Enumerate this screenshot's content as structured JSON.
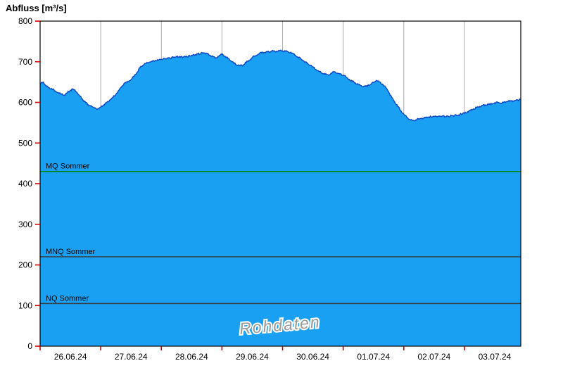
{
  "chart_data": {
    "type": "area",
    "title": "Abfluss [m³/s]",
    "xlabel": "",
    "ylabel": "Abfluss [m³/s]",
    "ylim": [
      0,
      800
    ],
    "y_ticks": [
      0,
      100,
      200,
      300,
      400,
      500,
      600,
      700,
      800
    ],
    "x_range_days": [
      0,
      7.93
    ],
    "day_gridlines": [
      1,
      2,
      3,
      4,
      5,
      6,
      7
    ],
    "x_tick_labels": [
      {
        "pos": 0.5,
        "label": "26.06.24"
      },
      {
        "pos": 1.5,
        "label": "27.06.24"
      },
      {
        "pos": 2.5,
        "label": "28.06.24"
      },
      {
        "pos": 3.5,
        "label": "29.06.24"
      },
      {
        "pos": 4.5,
        "label": "30.06.24"
      },
      {
        "pos": 5.5,
        "label": "01.07.24"
      },
      {
        "pos": 6.5,
        "label": "02.07.24"
      },
      {
        "pos": 7.5,
        "label": "03.07.24"
      }
    ],
    "grid": "vertical-only",
    "legend_position": "none",
    "watermark": {
      "text": "Rohdaten",
      "color": "#9a9a9a"
    },
    "reference_lines": [
      {
        "label": "MQ Sommer",
        "value": 430,
        "color": "#008000"
      },
      {
        "label": "MNQ Sommer",
        "value": 220,
        "color": "#3a3a3a"
      },
      {
        "label": "NQ Sommer",
        "value": 105,
        "color": "#3a3a3a"
      }
    ],
    "colors": {
      "area_fill": "#1aa0f2",
      "area_line": "#0b46c8",
      "tick_mark": "#cc0000",
      "grid_line": "#aaaaaa",
      "axis_text": "#000000",
      "plot_border": "#000000"
    },
    "series": [
      {
        "name": "Abfluss Rohdaten",
        "unit": "m³/s",
        "points": [
          [
            0.0,
            645
          ],
          [
            0.05,
            650
          ],
          [
            0.1,
            640
          ],
          [
            0.15,
            636
          ],
          [
            0.2,
            632
          ],
          [
            0.25,
            628
          ],
          [
            0.3,
            624
          ],
          [
            0.35,
            620
          ],
          [
            0.4,
            618
          ],
          [
            0.45,
            624
          ],
          [
            0.5,
            630
          ],
          [
            0.55,
            632
          ],
          [
            0.6,
            626
          ],
          [
            0.65,
            616
          ],
          [
            0.7,
            608
          ],
          [
            0.75,
            600
          ],
          [
            0.8,
            594
          ],
          [
            0.85,
            590
          ],
          [
            0.9,
            586
          ],
          [
            0.95,
            584
          ],
          [
            1.0,
            588
          ],
          [
            1.05,
            594
          ],
          [
            1.1,
            600
          ],
          [
            1.15,
            606
          ],
          [
            1.2,
            612
          ],
          [
            1.25,
            620
          ],
          [
            1.3,
            630
          ],
          [
            1.35,
            640
          ],
          [
            1.4,
            648
          ],
          [
            1.45,
            652
          ],
          [
            1.5,
            656
          ],
          [
            1.55,
            664
          ],
          [
            1.6,
            674
          ],
          [
            1.65,
            686
          ],
          [
            1.7,
            692
          ],
          [
            1.75,
            696
          ],
          [
            1.8,
            699
          ],
          [
            1.85,
            701
          ],
          [
            1.9,
            703
          ],
          [
            1.95,
            704
          ],
          [
            2.0,
            706
          ],
          [
            2.1,
            708
          ],
          [
            2.2,
            711
          ],
          [
            2.3,
            713
          ],
          [
            2.4,
            712
          ],
          [
            2.5,
            716
          ],
          [
            2.6,
            719
          ],
          [
            2.7,
            722
          ],
          [
            2.75,
            720
          ],
          [
            2.8,
            716
          ],
          [
            2.85,
            713
          ],
          [
            2.9,
            710
          ],
          [
            2.95,
            714
          ],
          [
            3.0,
            718
          ],
          [
            3.05,
            714
          ],
          [
            3.1,
            708
          ],
          [
            3.15,
            702
          ],
          [
            3.2,
            696
          ],
          [
            3.25,
            692
          ],
          [
            3.3,
            690
          ],
          [
            3.35,
            692
          ],
          [
            3.4,
            698
          ],
          [
            3.45,
            704
          ],
          [
            3.5,
            710
          ],
          [
            3.55,
            715
          ],
          [
            3.6,
            719
          ],
          [
            3.65,
            722
          ],
          [
            3.7,
            723
          ],
          [
            3.75,
            724
          ],
          [
            3.8,
            725
          ],
          [
            3.85,
            726
          ],
          [
            3.9,
            726
          ],
          [
            3.95,
            727
          ],
          [
            4.0,
            727
          ],
          [
            4.05,
            726
          ],
          [
            4.1,
            724
          ],
          [
            4.15,
            721
          ],
          [
            4.2,
            717
          ],
          [
            4.25,
            712
          ],
          [
            4.3,
            707
          ],
          [
            4.35,
            702
          ],
          [
            4.4,
            697
          ],
          [
            4.45,
            692
          ],
          [
            4.5,
            687
          ],
          [
            4.55,
            681
          ],
          [
            4.6,
            676
          ],
          [
            4.65,
            672
          ],
          [
            4.7,
            669
          ],
          [
            4.75,
            668
          ],
          [
            4.8,
            672
          ],
          [
            4.85,
            675
          ],
          [
            4.9,
            672
          ],
          [
            4.95,
            670
          ],
          [
            5.0,
            667
          ],
          [
            5.05,
            662
          ],
          [
            5.1,
            657
          ],
          [
            5.15,
            652
          ],
          [
            5.2,
            648
          ],
          [
            5.25,
            644
          ],
          [
            5.3,
            641
          ],
          [
            5.35,
            639
          ],
          [
            5.4,
            640
          ],
          [
            5.45,
            644
          ],
          [
            5.5,
            649
          ],
          [
            5.55,
            654
          ],
          [
            5.6,
            650
          ],
          [
            5.65,
            645
          ],
          [
            5.7,
            637
          ],
          [
            5.75,
            626
          ],
          [
            5.8,
            613
          ],
          [
            5.85,
            601
          ],
          [
            5.9,
            590
          ],
          [
            5.95,
            580
          ],
          [
            6.0,
            571
          ],
          [
            6.05,
            563
          ],
          [
            6.1,
            558
          ],
          [
            6.15,
            555
          ],
          [
            6.2,
            557
          ],
          [
            6.25,
            559
          ],
          [
            6.3,
            561
          ],
          [
            6.35,
            563
          ],
          [
            6.4,
            564
          ],
          [
            6.5,
            565
          ],
          [
            6.6,
            566
          ],
          [
            6.7,
            565
          ],
          [
            6.8,
            567
          ],
          [
            6.9,
            569
          ],
          [
            7.0,
            573
          ],
          [
            7.05,
            577
          ],
          [
            7.1,
            581
          ],
          [
            7.15,
            584
          ],
          [
            7.2,
            587
          ],
          [
            7.25,
            590
          ],
          [
            7.3,
            592
          ],
          [
            7.35,
            594
          ],
          [
            7.4,
            595
          ],
          [
            7.45,
            597
          ],
          [
            7.5,
            599
          ],
          [
            7.55,
            600
          ],
          [
            7.6,
            598
          ],
          [
            7.65,
            600
          ],
          [
            7.7,
            602
          ],
          [
            7.75,
            603
          ],
          [
            7.8,
            604
          ],
          [
            7.85,
            605
          ],
          [
            7.93,
            607
          ]
        ]
      }
    ]
  }
}
